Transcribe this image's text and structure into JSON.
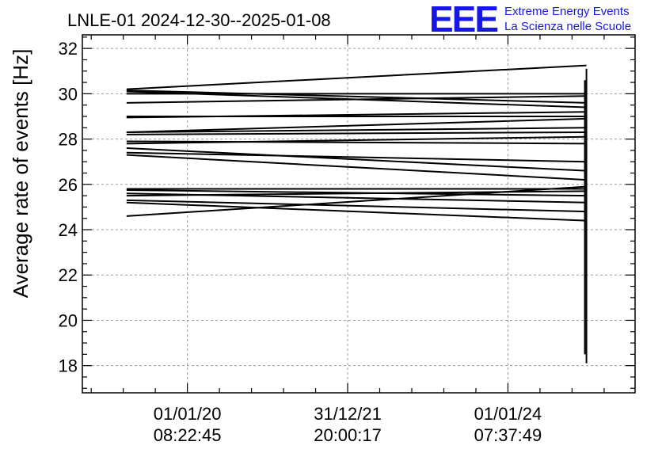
{
  "title": "LNLE-01 2024-12-30--2025-01-08",
  "logo": {
    "mark": "EEE",
    "line1": "Extreme Energy Events",
    "line2": "La Scienza nelle Scuole",
    "color": "#1616e6"
  },
  "chart_data": {
    "type": "line",
    "title": "LNLE-01 2024-12-30--2025-01-08",
    "ylabel": "Average rate of events [Hz]",
    "xlabel": "",
    "ylim": [
      16.8,
      32.6
    ],
    "yticks": [
      18,
      20,
      22,
      24,
      26,
      28,
      30,
      32
    ],
    "xlim": [
      0,
      1
    ],
    "xticks": [
      {
        "pos": 0.19,
        "line1": "01/01/20",
        "line2": "08:22:45"
      },
      {
        "pos": 0.48,
        "line1": "31/12/21",
        "line2": "20:00:17"
      },
      {
        "pos": 0.77,
        "line1": "01/01/24",
        "line2": "07:37:49"
      }
    ],
    "grid": true,
    "segments": [
      {
        "y_start": 30.2,
        "y_end": 31.25
      },
      {
        "y_start": 30.15,
        "y_end": 29.6
      },
      {
        "y_start": 30.1,
        "y_end": 29.4
      },
      {
        "y_start": 30.0,
        "y_end": 30.0
      },
      {
        "y_start": 29.6,
        "y_end": 29.9
      },
      {
        "y_start": 29.0,
        "y_end": 29.0
      },
      {
        "y_start": 28.95,
        "y_end": 29.2
      },
      {
        "y_start": 28.3,
        "y_end": 28.9
      },
      {
        "y_start": 28.3,
        "y_end": 28.5
      },
      {
        "y_start": 28.2,
        "y_end": 28.3
      },
      {
        "y_start": 27.9,
        "y_end": 27.8
      },
      {
        "y_start": 27.8,
        "y_end": 28.1
      },
      {
        "y_start": 27.6,
        "y_end": 26.6
      },
      {
        "y_start": 27.4,
        "y_end": 27.0
      },
      {
        "y_start": 27.3,
        "y_end": 26.2
      },
      {
        "y_start": 25.8,
        "y_end": 25.8
      },
      {
        "y_start": 25.75,
        "y_end": 25.5
      },
      {
        "y_start": 25.6,
        "y_end": 25.2
      },
      {
        "y_start": 25.5,
        "y_end": 25.7
      },
      {
        "y_start": 25.3,
        "y_end": 24.8
      },
      {
        "y_start": 25.2,
        "y_end": 24.4
      },
      {
        "y_start": 24.6,
        "y_end": 25.9
      }
    ],
    "spike": {
      "y_min": 18.1,
      "y_max": 31.1
    }
  }
}
